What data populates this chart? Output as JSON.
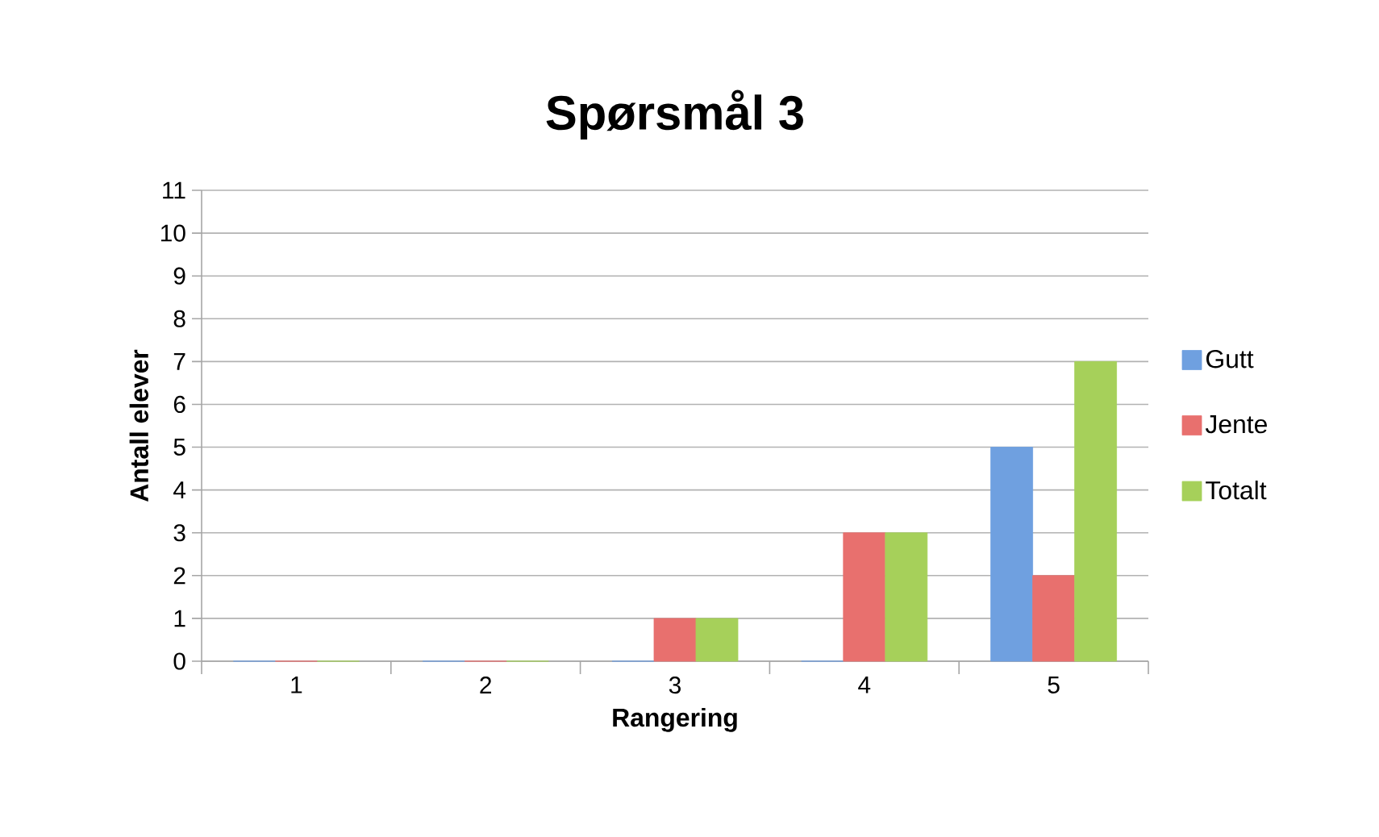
{
  "chart_data": {
    "type": "bar",
    "title": "Spørsmål 3",
    "xlabel": "Rangering",
    "ylabel": "Antall elever",
    "categories": [
      "1",
      "2",
      "3",
      "4",
      "5"
    ],
    "series": [
      {
        "name": "Gutt",
        "color": "#6fa0e0",
        "values": [
          0,
          0,
          0,
          0,
          5
        ]
      },
      {
        "name": "Jente",
        "color": "#e8706e",
        "values": [
          0,
          0,
          1,
          3,
          2
        ]
      },
      {
        "name": "Totalt",
        "color": "#a6d05a",
        "values": [
          0,
          0,
          1,
          3,
          7
        ]
      }
    ],
    "ylim": [
      0,
      11
    ],
    "yticks": [
      0,
      1,
      2,
      3,
      4,
      5,
      6,
      7,
      8,
      9,
      10,
      11
    ],
    "grid": "y",
    "legend": "right"
  }
}
